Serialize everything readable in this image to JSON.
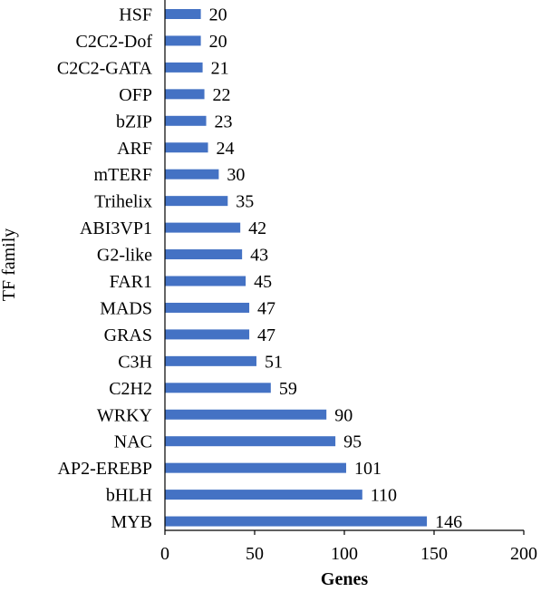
{
  "chart_data": {
    "type": "bar",
    "orientation": "horizontal",
    "title": "",
    "xlabel": "Genes",
    "ylabel": "TF family",
    "xlim": [
      0,
      200
    ],
    "xticks": [
      "0",
      "50",
      "100",
      "150",
      "200"
    ],
    "grid": false,
    "bar_color": "#4472C4",
    "categories": [
      "HSF",
      "C2C2-Dof",
      "C2C2-GATA",
      "OFP",
      "bZIP",
      "ARF",
      "mTERF",
      "Trihelix",
      "ABI3VP1",
      "G2-like",
      "FAR1",
      "MADS",
      "GRAS",
      "C3H",
      "C2H2",
      "WRKY",
      "NAC",
      "AP2-EREBP",
      "bHLH",
      "MYB"
    ],
    "values": [
      20,
      20,
      21,
      22,
      23,
      24,
      30,
      35,
      42,
      43,
      45,
      47,
      47,
      51,
      59,
      90,
      95,
      101,
      110,
      146
    ]
  }
}
